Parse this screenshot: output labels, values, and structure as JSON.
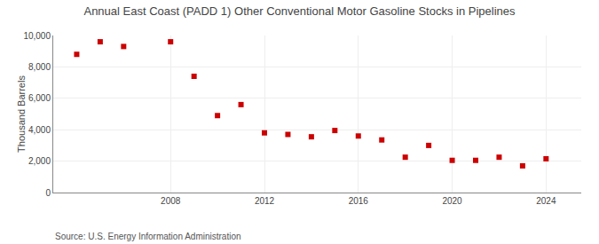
{
  "chart_data": {
    "type": "scatter",
    "title": "Annual East Coast (PADD 1) Other Conventional Motor Gasoline Stocks in Pipelines",
    "ylabel": "Thousand Barrels",
    "annotations": [
      "Source: U.S. Energy Information Administration"
    ],
    "x": [
      2004,
      2005,
      2006,
      2008,
      2009,
      2010,
      2011,
      2012,
      2013,
      2014,
      2015,
      2016,
      2017,
      2018,
      2019,
      2020,
      2021,
      2022,
      2023,
      2024
    ],
    "values": [
      8800,
      9600,
      9300,
      9600,
      7400,
      4900,
      5600,
      3800,
      3700,
      3550,
      3950,
      3600,
      3350,
      2250,
      3000,
      2050,
      2050,
      2250,
      1700,
      2150
    ],
    "color": "#CC0000",
    "marker": "square",
    "xlim": [
      2003,
      2025.5
    ],
    "xticks": [
      2008,
      2012,
      2016,
      2020,
      2024
    ],
    "ylim": [
      0,
      10000
    ],
    "yticks": [
      0,
      {
        "value": 2000,
        "label": "2,000"
      },
      {
        "value": 4000,
        "label": "4,000"
      },
      {
        "value": 6000,
        "label": "6,000"
      },
      {
        "value": 8000,
        "label": "8,000"
      },
      {
        "value": 10000,
        "label": "10,000"
      }
    ],
    "grid": true
  }
}
